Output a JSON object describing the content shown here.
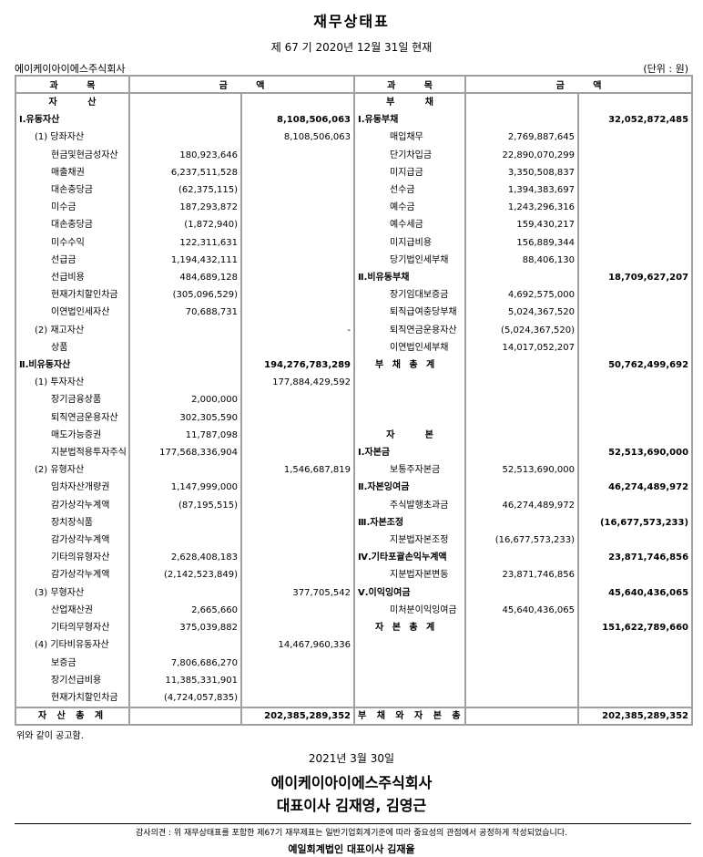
{
  "title": "재무상태표",
  "subtitle": "제 67 기 2020년 12월 31일 현재",
  "company": "에이케이아이에스주식회사",
  "unit": "(단위 : 원)",
  "headers": {
    "item": "과 목",
    "amount": "금 액"
  },
  "left_rows": [
    {
      "label": "자 산",
      "level": "heading"
    },
    {
      "label": "Ⅰ.유동자산",
      "a2": "8,108,506,063",
      "level": 0
    },
    {
      "label": "(1) 당좌자산",
      "a2": "8,108,506,063",
      "level": 1
    },
    {
      "label": "현금및현금성자산",
      "a1": "180,923,646",
      "level": 2
    },
    {
      "label": "매출채권",
      "a1": "6,237,511,528",
      "level": 2
    },
    {
      "label": "대손충당금",
      "a1": "(62,375,115)",
      "level": 2
    },
    {
      "label": "미수금",
      "a1": "187,293,872",
      "level": 2
    },
    {
      "label": "대손충당금",
      "a1": "(1,872,940)",
      "level": 2
    },
    {
      "label": "미수수익",
      "a1": "122,311,631",
      "level": 2
    },
    {
      "label": "선급금",
      "a1": "1,194,432,111",
      "level": 2
    },
    {
      "label": "선급비용",
      "a1": "484,689,128",
      "level": 2
    },
    {
      "label": "현재가치할인차금",
      "a1": "(305,096,529)",
      "level": 2
    },
    {
      "label": "이연법인세자산",
      "a1": "70,688,731",
      "level": 2
    },
    {
      "label": "(2) 재고자산",
      "a2": "-",
      "level": 1
    },
    {
      "label": "상품",
      "level": 2
    },
    {
      "label": "Ⅱ.비유동자산",
      "a2": "194,276,783,289",
      "level": 0
    },
    {
      "label": "(1) 투자자산",
      "a2": "177,884,429,592",
      "level": 1
    },
    {
      "label": "장기금융상품",
      "a1": "2,000,000",
      "level": 2
    },
    {
      "label": "퇴직연금운용자산",
      "a1": "302,305,590",
      "level": 2
    },
    {
      "label": "매도가능증권",
      "a1": "11,787,098",
      "level": 2
    },
    {
      "label": "지분법적용투자주식",
      "a1": "177,568,336,904",
      "level": 2
    },
    {
      "label": "(2) 유형자산",
      "a2": "1,546,687,819",
      "level": 1
    },
    {
      "label": "임차자산개량권",
      "a1": "1,147,999,000",
      "level": 2
    },
    {
      "label": "감가상각누계액",
      "a1": "(87,195,515)",
      "level": 2
    },
    {
      "label": "장치장식품",
      "level": 2
    },
    {
      "label": "감가상각누계액",
      "level": 2
    },
    {
      "label": "기타의유형자산",
      "a1": "2,628,408,183",
      "level": 2
    },
    {
      "label": "감가상각누계액",
      "a1": "(2,142,523,849)",
      "level": 2
    },
    {
      "label": "(3) 무형자산",
      "a2": "377,705,542",
      "level": 1
    },
    {
      "label": "산업재산권",
      "a1": "2,665,660",
      "level": 2
    },
    {
      "label": "기타의무형자산",
      "a1": "375,039,882",
      "level": 2
    },
    {
      "label": "(4) 기타비유동자산",
      "a2": "14,467,960,336",
      "level": 1
    },
    {
      "label": "보증금",
      "a1": "7,806,686,270",
      "level": 2
    },
    {
      "label": "장기선급비용",
      "a1": "11,385,331,901",
      "level": 2
    },
    {
      "label": "현재가치할인차금",
      "a1": "(4,724,057,835)",
      "level": 2
    }
  ],
  "right_rows": [
    {
      "label": "부 채",
      "level": "heading"
    },
    {
      "label": "Ⅰ.유동부채",
      "a2": "32,052,872,485",
      "level": 0
    },
    {
      "label": "매입채무",
      "a1": "2,769,887,645",
      "level": 2
    },
    {
      "label": "단기차입금",
      "a1": "22,890,070,299",
      "level": 2
    },
    {
      "label": "미지급금",
      "a1": "3,350,508,837",
      "level": 2
    },
    {
      "label": "선수금",
      "a1": "1,394,383,697",
      "level": 2
    },
    {
      "label": "예수금",
      "a1": "1,243,296,316",
      "level": 2
    },
    {
      "label": "예수세금",
      "a1": "159,430,217",
      "level": 2
    },
    {
      "label": "미지급비용",
      "a1": "156,889,344",
      "level": 2
    },
    {
      "label": "당기법인세부채",
      "a1": "88,406,130",
      "level": 2
    },
    {
      "label": "Ⅱ.비유동부채",
      "a2": "18,709,627,207",
      "level": 0
    },
    {
      "label": "장기임대보증금",
      "a1": "4,692,575,000",
      "level": 2
    },
    {
      "label": "퇴직급여충당부채",
      "a1": "5,024,367,520",
      "level": 2
    },
    {
      "label": "퇴직연금운용자산",
      "a1": "(5,024,367,520)",
      "level": 2
    },
    {
      "label": "이연법인세부채",
      "a1": "14,017,052,207",
      "level": 2
    },
    {
      "label": "부 채 총 계",
      "a2": "50,762,499,692",
      "level": "total"
    },
    {},
    {},
    {},
    {
      "label": "자 본",
      "level": "heading"
    },
    {
      "label": "Ⅰ.자본금",
      "a2": "52,513,690,000",
      "level": 0
    },
    {
      "label": "보통주자본금",
      "a1": "52,513,690,000",
      "level": 2
    },
    {
      "label": "Ⅱ.자본잉여금",
      "a2": "46,274,489,972",
      "level": 0
    },
    {
      "label": "주식발행초과금",
      "a1": "46,274,489,972",
      "level": 2
    },
    {
      "label": "Ⅲ.자본조정",
      "a2": "(16,677,573,233)",
      "level": 0
    },
    {
      "label": "지분법자본조정",
      "a1": "(16,677,573,233)",
      "level": 2
    },
    {
      "label": "Ⅳ.기타포괄손익누계액",
      "a2": "23,871,746,856",
      "level": 0
    },
    {
      "label": "지분법자본변동",
      "a1": "23,871,746,856",
      "level": 2
    },
    {
      "label": "Ⅴ.이익잉여금",
      "a2": "45,640,436,065",
      "level": 0
    },
    {
      "label": "미처분이익잉여금",
      "a1": "45,640,436,065",
      "level": 2
    },
    {
      "label": "자 본 총 계",
      "a2": "151,622,789,660",
      "level": "total"
    },
    {},
    {},
    {},
    {}
  ],
  "totals": {
    "assets_label": "자 산 총 계",
    "assets_value": "202,385,289,352",
    "liab_equity_label": "부 채 와 자 본 총 계",
    "liab_equity_value": "202,385,289,352"
  },
  "footer": {
    "notice": "위와 같이 공고함.",
    "date": "2021년 3월 30일",
    "company": "에이케이아이에스주식회사",
    "representative": "대표이사 김재영, 김영근",
    "audit_opinion": "감사의견 : 위 재무상태표를 포함한 제67기 재무제표는 일반기업회계기준에 따라 중요성의 관점에서 공정하게 작성되었습니다.",
    "audit_firm": "예일회계법인 대표이사 김재율"
  }
}
